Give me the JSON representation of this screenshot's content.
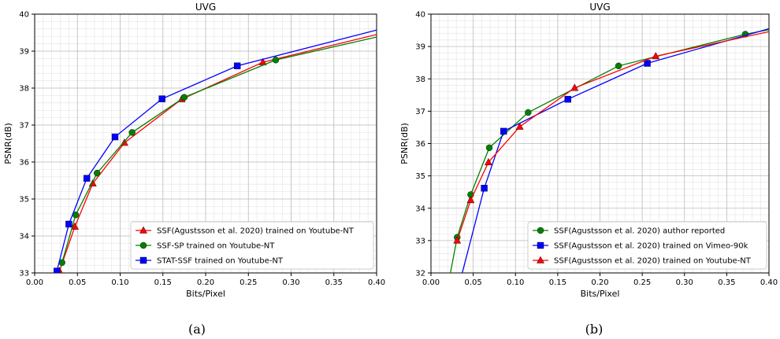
{
  "chart_data": [
    {
      "type": "line",
      "panel_caption": "(a)",
      "title": "UVG",
      "xlabel": "Bits/Pixel",
      "ylabel": "PSNR(dB)",
      "xlim": [
        0.0,
        0.4
      ],
      "ylim": [
        33,
        40
      ],
      "xticks": [
        "0.00",
        "0.05",
        "0.10",
        "0.15",
        "0.20",
        "0.25",
        "0.30",
        "0.35",
        "0.40"
      ],
      "yticks": [
        "33",
        "34",
        "35",
        "36",
        "37",
        "38",
        "39",
        "40"
      ],
      "grid": true,
      "legend_position": "bottom-right",
      "series": [
        {
          "name": "SSF(Agustsson et al. 2020) trained on Youtube-NT",
          "color": "#ff0000",
          "marker": "triangle",
          "x": [
            0.029,
            0.047,
            0.068,
            0.105,
            0.172,
            0.267,
            0.4
          ],
          "y": [
            33.05,
            34.25,
            35.42,
            36.52,
            37.7,
            38.7,
            39.45
          ]
        },
        {
          "name": "SSF-SP trained on Youtube-NT",
          "color": "#008000",
          "marker": "circle",
          "x": [
            0.032,
            0.048,
            0.073,
            0.114,
            0.175,
            0.282,
            0.4
          ],
          "y": [
            33.28,
            34.57,
            35.7,
            36.8,
            37.75,
            38.76,
            39.38
          ]
        },
        {
          "name": "STAT-SSF trained on Youtube-NT",
          "color": "#0000ff",
          "marker": "square",
          "x": [
            0.026,
            0.04,
            0.061,
            0.094,
            0.149,
            0.237,
            0.4
          ],
          "y": [
            33.05,
            34.32,
            35.56,
            36.68,
            37.71,
            38.6,
            39.57
          ]
        }
      ]
    },
    {
      "type": "line",
      "panel_caption": "(b)",
      "title": "UVG",
      "xlabel": "Bits/Pixel",
      "ylabel": "PSNR(dB)",
      "xlim": [
        0.0,
        0.4
      ],
      "ylim": [
        32,
        40
      ],
      "xticks": [
        "0.00",
        "0.05",
        "0.10",
        "0.15",
        "0.20",
        "0.25",
        "0.30",
        "0.35",
        "0.40"
      ],
      "yticks": [
        "32",
        "33",
        "34",
        "35",
        "36",
        "37",
        "38",
        "39",
        "40"
      ],
      "grid": true,
      "legend_position": "bottom-right",
      "series": [
        {
          "name": "SSF(Agustsson et al. 2020) author reported",
          "color": "#008000",
          "marker": "circle",
          "x": [
            0.023,
            0.031,
            0.047,
            0.069,
            0.115,
            0.222,
            0.372,
            0.4
          ],
          "y": [
            32.0,
            33.1,
            34.42,
            35.87,
            36.96,
            38.4,
            39.38,
            39.52
          ]
        },
        {
          "name": "SSF(Agustsson et al. 2020) trained on Vimeo-90k",
          "color": "#0000ff",
          "marker": "square",
          "x": [
            0.037,
            0.063,
            0.086,
            0.162,
            0.256,
            0.4
          ],
          "y": [
            32.0,
            34.62,
            36.38,
            37.37,
            38.48,
            39.55
          ]
        },
        {
          "name": "SSF(Agustsson et al. 2020) trained on Youtube-NT",
          "color": "#ff0000",
          "marker": "triangle",
          "x": [
            0.031,
            0.047,
            0.068,
            0.105,
            0.17,
            0.266,
            0.4
          ],
          "y": [
            33.0,
            34.25,
            35.42,
            36.52,
            37.72,
            38.7,
            39.46
          ]
        }
      ]
    }
  ]
}
